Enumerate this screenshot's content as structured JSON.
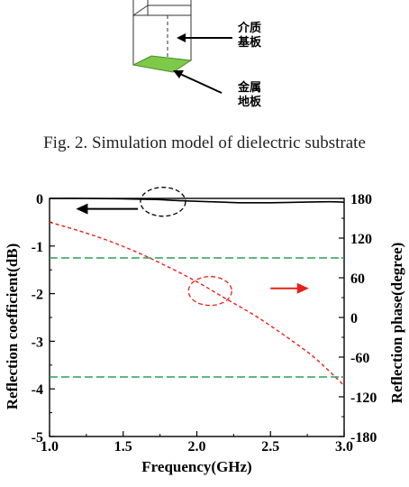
{
  "model": {
    "substrate_label": "介质\n基板",
    "ground_label": "金属\n地板"
  },
  "caption": "Fig. 2.  Simulation model of dielectric substrate",
  "chart_data": {
    "type": "line",
    "title": "",
    "xlabel": "Frequency(GHz)",
    "ylabel": "Reflection coefficient(dB)",
    "y2label": "Reflection phase(degree)",
    "xlim": [
      1.0,
      3.0
    ],
    "ylim": [
      -5,
      0
    ],
    "y2lim": [
      -180,
      180
    ],
    "x_ticks": [
      1.0,
      1.5,
      2.0,
      2.5,
      3.0
    ],
    "x_tick_labels": [
      "1.0",
      "1.5",
      "2.0",
      "2.5",
      "3.0"
    ],
    "y_ticks": [
      0,
      -1,
      -2,
      -3,
      -4,
      -5
    ],
    "y_tick_labels": [
      "0",
      "-1",
      "-2",
      "-3",
      "-4",
      "-5"
    ],
    "y2_ticks": [
      180,
      120,
      60,
      0,
      -60,
      -120,
      -180
    ],
    "y2_tick_labels": [
      "180",
      "120",
      "60",
      "0",
      "-60",
      "-120",
      "-180"
    ],
    "grid": false,
    "series": [
      {
        "axis": "left",
        "style": "solid",
        "color": "#000000",
        "x": [
          1.0,
          1.25,
          1.5,
          1.7,
          1.9,
          2.1,
          2.3,
          2.5,
          2.7,
          2.9,
          3.0
        ],
        "y": [
          0,
          0,
          -0.01,
          -0.02,
          -0.05,
          -0.07,
          -0.09,
          -0.09,
          -0.08,
          -0.07,
          -0.08
        ]
      },
      {
        "axis": "right",
        "style": "dashed",
        "color": "#e8201a",
        "x": [
          1.0,
          1.2,
          1.4,
          1.6,
          1.8,
          2.0,
          2.2,
          2.4,
          2.6,
          2.8,
          3.0
        ],
        "y": [
          144,
          131,
          116,
          98,
          77,
          54,
          28,
          2,
          -28,
          -61,
          -103
        ]
      },
      {
        "axis": "right",
        "style": "dashed",
        "color": "#2e9e5b",
        "x": [
          1.0,
          3.0
        ],
        "y": [
          90,
          90
        ]
      },
      {
        "axis": "right",
        "style": "dashed",
        "color": "#2e9e5b",
        "x": [
          1.0,
          3.0
        ],
        "y": [
          -90,
          -90
        ]
      }
    ],
    "annotations": [
      {
        "type": "ellipse",
        "color": "#000000",
        "x": 1.77,
        "y": -0.07,
        "axis": "left"
      },
      {
        "type": "arrow",
        "direction": "left",
        "color": "#000000",
        "from_x": 1.6,
        "to_x": 1.18,
        "y": -0.22,
        "axis": "left"
      },
      {
        "type": "ellipse",
        "color": "#e8201a",
        "x": 2.09,
        "y2": 40
      },
      {
        "type": "arrow",
        "direction": "right",
        "color": "#e8201a",
        "from_x": 2.5,
        "to_x": 2.76,
        "y2": 44
      }
    ]
  }
}
